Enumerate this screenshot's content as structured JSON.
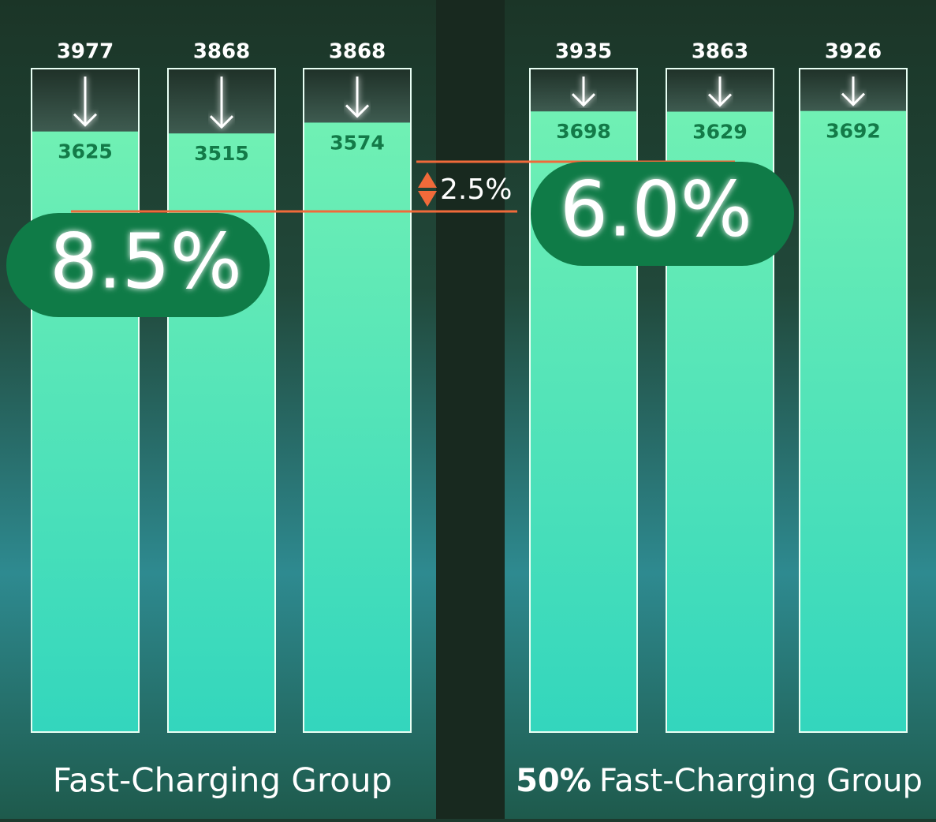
{
  "chart_data": {
    "type": "capacity-bars",
    "groups": [
      {
        "label": "Fast-Charging Group",
        "initial": [
          3977,
          3868,
          3868
        ],
        "current": [
          3625,
          3515,
          3574
        ],
        "reduction": "8.5%"
      },
      {
        "label_prefix": "50%",
        "label": "Fast-Charging Group",
        "initial": [
          3935,
          3863,
          3926
        ],
        "current": [
          3698,
          3629,
          3692
        ],
        "reduction": "6.0%"
      }
    ],
    "difference": "2.5%"
  }
}
